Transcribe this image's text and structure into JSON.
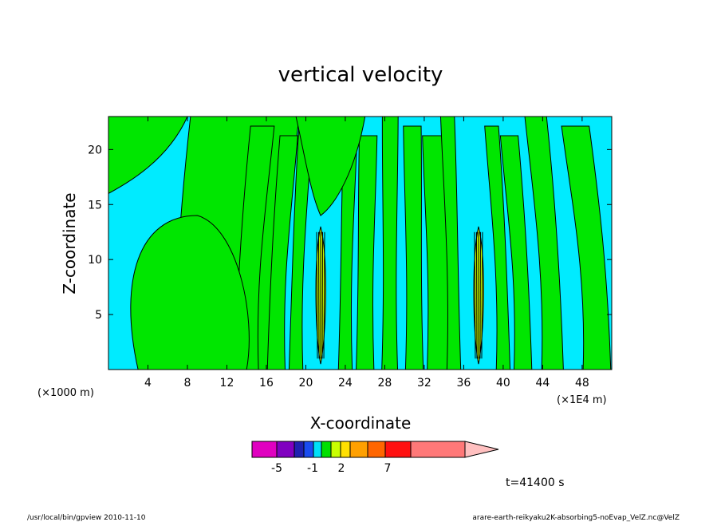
{
  "chart_data": {
    "type": "heatmap",
    "title": "vertical velocity",
    "xlabel": "X-coordinate",
    "ylabel": "Z-coordinate",
    "x_unit_label": "(×1000 m)",
    "x_multiplier_label": "(×1E4 m)",
    "xlim": [
      0,
      51
    ],
    "ylim": [
      0,
      23
    ],
    "x_ticks": [
      4,
      8,
      12,
      16,
      20,
      24,
      28,
      32,
      36,
      40,
      44,
      48
    ],
    "y_ticks": [
      5,
      10,
      15,
      20
    ],
    "colorbar": {
      "colors": [
        "#e000c0",
        "#8000c0",
        "#2020b0",
        "#1a4cf0",
        "#00e0f8",
        "#00e000",
        "#c8ff00",
        "#ffe000",
        "#ffa000",
        "#ff6600",
        "#ff1010",
        "#ff7878",
        "#ffc0c0"
      ],
      "labels": [
        "-5",
        "-1",
        "2",
        "7"
      ]
    },
    "fill_colors": {
      "negative": "#00ebff",
      "positive": "#00e600"
    },
    "updraft_columns_x": [
      21.5,
      37.5
    ],
    "time_label": "t=41400 s"
  },
  "footer": {
    "left": "/usr/local/bin/gpview  2010-11-10",
    "right": "arare-earth-reikyaku2K-absorbing5-noEvap_VelZ.nc@VelZ"
  }
}
